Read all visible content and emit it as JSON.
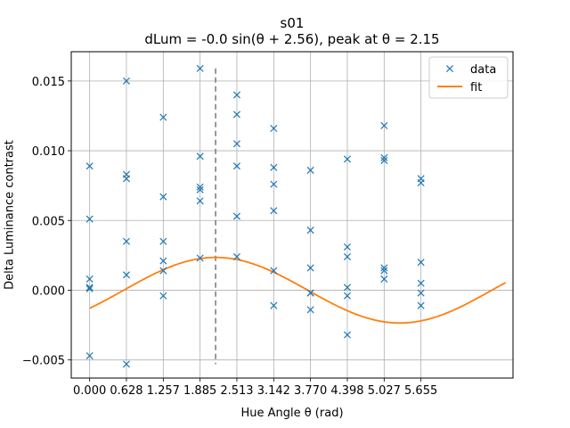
{
  "chart_data": {
    "type": "scatter",
    "title": "s01",
    "subtitle": "dLum = -0.0 sin(θ + 2.56), peak at θ = 2.15",
    "xlabel": "Hue Angle θ (rad)",
    "ylabel": "Delta Luminance contrast",
    "xlim": [
      -0.314,
      7.226
    ],
    "ylim": [
      -0.0063,
      0.0171
    ],
    "x_ticks": [
      0.0,
      0.628,
      1.257,
      1.885,
      2.513,
      3.142,
      3.77,
      4.398,
      5.027,
      5.655
    ],
    "x_tick_labels": [
      "0.000",
      "0.628",
      "1.257",
      "1.885",
      "2.513",
      "3.142",
      "3.770",
      "4.398",
      "5.027",
      "5.655"
    ],
    "y_ticks": [
      -0.005,
      0.0,
      0.005,
      0.01,
      0.015
    ],
    "y_tick_labels": [
      "−0.005",
      "0.000",
      "0.005",
      "0.010",
      "0.015"
    ],
    "grid": true,
    "legend_position": "top-right",
    "colors": {
      "data": "#1f77b4",
      "fit": "#ff7f0e",
      "peak_line": "#7f7f7f"
    },
    "series": [
      {
        "name": "data",
        "kind": "scatter",
        "marker": "x",
        "points": [
          [
            0.0,
            0.0089
          ],
          [
            0.0,
            0.0051
          ],
          [
            0.0,
            0.0008
          ],
          [
            0.0,
            0.0001
          ],
          [
            0.0,
            0.0002
          ],
          [
            0.0,
            -0.0047
          ],
          [
            0.628,
            0.015
          ],
          [
            0.628,
            0.0083
          ],
          [
            0.628,
            0.008
          ],
          [
            0.628,
            0.0035
          ],
          [
            0.628,
            0.0011
          ],
          [
            0.628,
            -0.0053
          ],
          [
            1.257,
            0.0124
          ],
          [
            1.257,
            0.0067
          ],
          [
            1.257,
            0.0035
          ],
          [
            1.257,
            0.0021
          ],
          [
            1.257,
            0.0014
          ],
          [
            1.257,
            -0.0004
          ],
          [
            1.885,
            0.0159
          ],
          [
            1.885,
            0.0096
          ],
          [
            1.885,
            0.0074
          ],
          [
            1.885,
            0.0072
          ],
          [
            1.885,
            0.0064
          ],
          [
            1.885,
            0.0023
          ],
          [
            2.513,
            0.014
          ],
          [
            2.513,
            0.0126
          ],
          [
            2.513,
            0.0105
          ],
          [
            2.513,
            0.0089
          ],
          [
            2.513,
            0.0053
          ],
          [
            2.513,
            0.0024
          ],
          [
            3.142,
            0.0116
          ],
          [
            3.142,
            0.0088
          ],
          [
            3.142,
            0.0076
          ],
          [
            3.142,
            0.0057
          ],
          [
            3.142,
            0.0014
          ],
          [
            3.142,
            -0.0011
          ],
          [
            3.77,
            0.0086
          ],
          [
            3.77,
            0.0043
          ],
          [
            3.77,
            0.0016
          ],
          [
            3.77,
            -0.0002
          ],
          [
            3.77,
            -0.0002
          ],
          [
            3.77,
            -0.0014
          ],
          [
            4.398,
            0.0094
          ],
          [
            4.398,
            0.0031
          ],
          [
            4.398,
            0.0024
          ],
          [
            4.398,
            0.0002
          ],
          [
            4.398,
            -0.0004
          ],
          [
            4.398,
            -0.0032
          ],
          [
            5.027,
            0.0118
          ],
          [
            5.027,
            0.0095
          ],
          [
            5.027,
            0.0093
          ],
          [
            5.027,
            0.0016
          ],
          [
            5.027,
            0.0014
          ],
          [
            5.027,
            0.0008
          ],
          [
            5.655,
            0.008
          ],
          [
            5.655,
            0.0077
          ],
          [
            5.655,
            0.002
          ],
          [
            5.655,
            0.0005
          ],
          [
            5.655,
            -0.0002
          ],
          [
            5.655,
            -0.0011
          ]
        ]
      },
      {
        "name": "fit",
        "kind": "line",
        "function": "a*sin(x + phase) + c",
        "a": -0.00235,
        "phase": 2.56,
        "c": 0.0,
        "x_range": [
          0.0,
          7.1
        ]
      }
    ],
    "annotations": [
      {
        "kind": "vline",
        "x": 2.15,
        "y_range": [
          -0.0053,
          0.0159
        ],
        "style": "dashed"
      }
    ]
  }
}
